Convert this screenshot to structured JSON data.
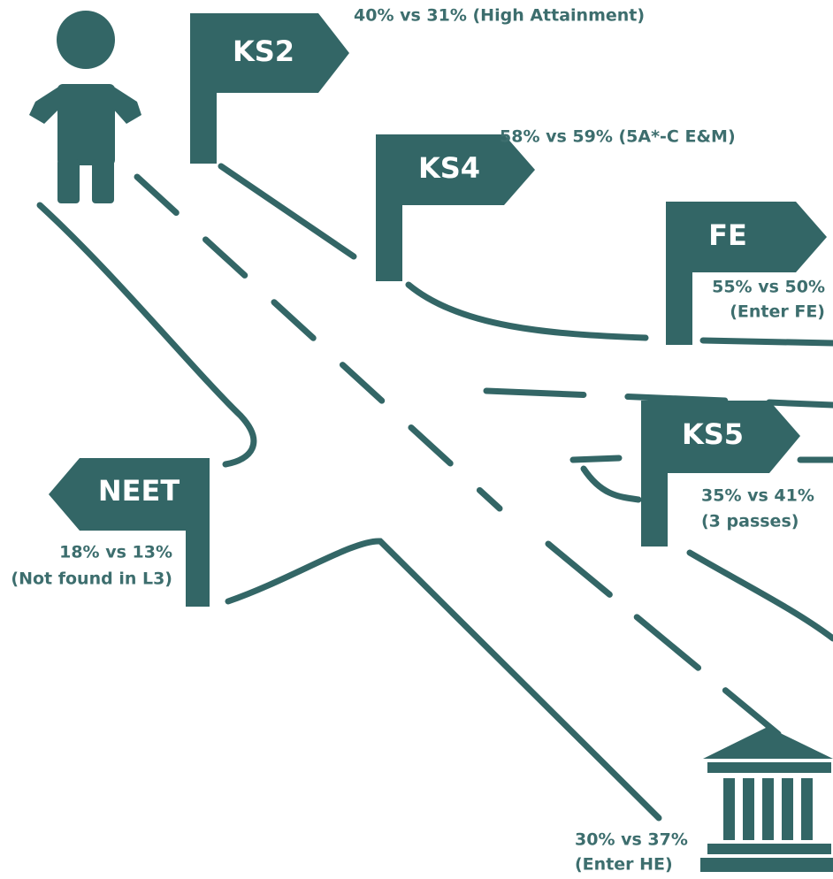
{
  "signs": [
    {
      "label": "KS2",
      "caption": [
        "40% vs 31% (High Attainment)"
      ]
    },
    {
      "label": "KS4",
      "caption": [
        "58% vs 59% (5A*-C E&M)"
      ]
    },
    {
      "label": "FE",
      "caption": [
        "55% vs 50%",
        "(Enter FE)"
      ]
    },
    {
      "label": "KS5",
      "caption": [
        "35% vs 41%",
        "(3 passes)"
      ]
    },
    {
      "label": "NEET",
      "caption": [
        "18% vs 13%",
        "(Not found in L3)"
      ]
    }
  ],
  "destination": {
    "caption": [
      "30% vs 37%",
      "(Enter HE)"
    ]
  }
}
